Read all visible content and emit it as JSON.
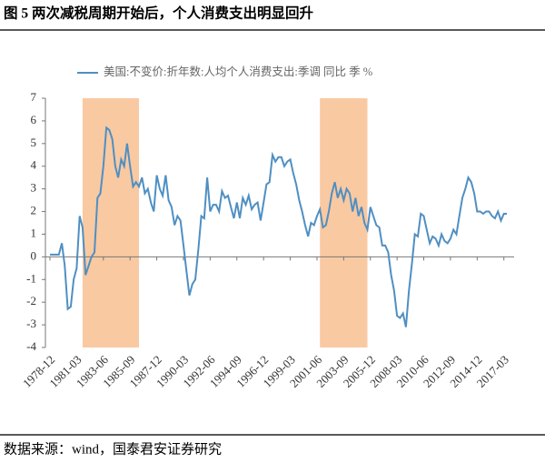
{
  "chart_data": {
    "type": "line",
    "title": "图 5  两次减税周期开始后，个人消费支出明显回升",
    "source": "数据来源：wind，国泰君安证券研究",
    "categories": [
      "1978-12",
      null,
      null,
      null,
      null,
      null,
      null,
      null,
      null,
      "1981-03",
      null,
      null,
      null,
      null,
      null,
      null,
      null,
      null,
      "1983-06",
      null,
      null,
      null,
      null,
      null,
      null,
      null,
      null,
      "1985-09",
      null,
      null,
      null,
      null,
      null,
      null,
      null,
      null,
      "1987-12",
      null,
      null,
      null,
      null,
      null,
      null,
      null,
      null,
      "1990-03",
      null,
      null,
      null,
      null,
      null,
      null,
      null,
      null,
      "1992-06",
      null,
      null,
      null,
      null,
      null,
      null,
      null,
      null,
      "1994-09",
      null,
      null,
      null,
      null,
      null,
      null,
      null,
      null,
      "1996-12",
      null,
      null,
      null,
      null,
      null,
      null,
      null,
      null,
      "1999-03",
      null,
      null,
      null,
      null,
      null,
      null,
      null,
      null,
      "2001-06",
      null,
      null,
      null,
      null,
      null,
      null,
      null,
      null,
      "2003-09",
      null,
      null,
      null,
      null,
      null,
      null,
      null,
      null,
      "2005-12",
      null,
      null,
      null,
      null,
      null,
      null,
      null,
      null,
      "2008-03",
      null,
      null,
      null,
      null,
      null,
      null,
      null,
      null,
      "2010-06",
      null,
      null,
      null,
      null,
      null,
      null,
      null,
      null,
      "2012-09",
      null,
      null,
      null,
      null,
      null,
      null,
      null,
      null,
      "2014-12",
      null,
      null,
      null,
      null,
      null,
      null,
      null,
      null,
      "2017-03",
      null
    ],
    "series": [
      {
        "name": "美国:不变价:折年数:人均个人消费支出:季调 同比 季 %",
        "color": "#4f8fc2",
        "values": [
          0.1,
          0.1,
          0.1,
          0.1,
          0.6,
          -0.4,
          -2.3,
          -2.2,
          -1.0,
          -0.5,
          1.8,
          1.3,
          -0.8,
          -0.4,
          0.0,
          0.2,
          2.6,
          2.8,
          4.0,
          5.7,
          5.6,
          5.2,
          4.0,
          3.5,
          4.3,
          4.0,
          5.0,
          4.0,
          3.1,
          3.3,
          3.1,
          3.5,
          2.8,
          3.0,
          2.4,
          2.0,
          3.6,
          3.0,
          2.7,
          3.6,
          2.5,
          2.2,
          1.4,
          1.8,
          1.6,
          0.5,
          -0.6,
          -1.7,
          -1.2,
          -1.0,
          0.3,
          1.8,
          1.7,
          3.5,
          2.0,
          2.3,
          2.3,
          2.0,
          2.9,
          2.6,
          2.7,
          2.2,
          1.7,
          2.4,
          1.7,
          2.6,
          2.3,
          2.7,
          2.1,
          2.3,
          2.4,
          1.6,
          2.4,
          3.2,
          3.3,
          4.5,
          4.2,
          4.4,
          4.4,
          4.0,
          4.2,
          4.3,
          3.7,
          3.2,
          2.5,
          2.0,
          1.4,
          0.9,
          1.5,
          1.4,
          1.8,
          2.1,
          1.3,
          1.4,
          2.0,
          2.8,
          3.3,
          2.6,
          3.0,
          2.5,
          3.0,
          2.8,
          2.0,
          2.6,
          1.8,
          2.2,
          1.5,
          1.2,
          2.2,
          1.8,
          1.4,
          1.3,
          0.5,
          0.5,
          0.2,
          -0.8,
          -1.5,
          -2.6,
          -2.7,
          -2.5,
          -3.1,
          -1.5,
          -0.3,
          1.0,
          0.9,
          1.9,
          1.8,
          1.2,
          0.6,
          0.9,
          0.8,
          0.5,
          1.0,
          0.7,
          0.6,
          0.8,
          1.2,
          1.0,
          1.8,
          2.6,
          3.0,
          3.5,
          3.3,
          2.8,
          2.0,
          2.0,
          1.9,
          2.0,
          2.0,
          1.8,
          1.7,
          2.0,
          1.6,
          1.9,
          1.9
        ]
      }
    ],
    "highlights": [
      {
        "start": "1981-09",
        "end": "1986-06"
      },
      {
        "start": "2001-09",
        "end": "2005-09"
      }
    ],
    "highlight_color": "#f9c9a2",
    "ylim": [
      -4,
      7
    ],
    "yticks": [
      -4,
      -3,
      -2,
      -1,
      0,
      1,
      2,
      3,
      4,
      5,
      6,
      7
    ]
  }
}
